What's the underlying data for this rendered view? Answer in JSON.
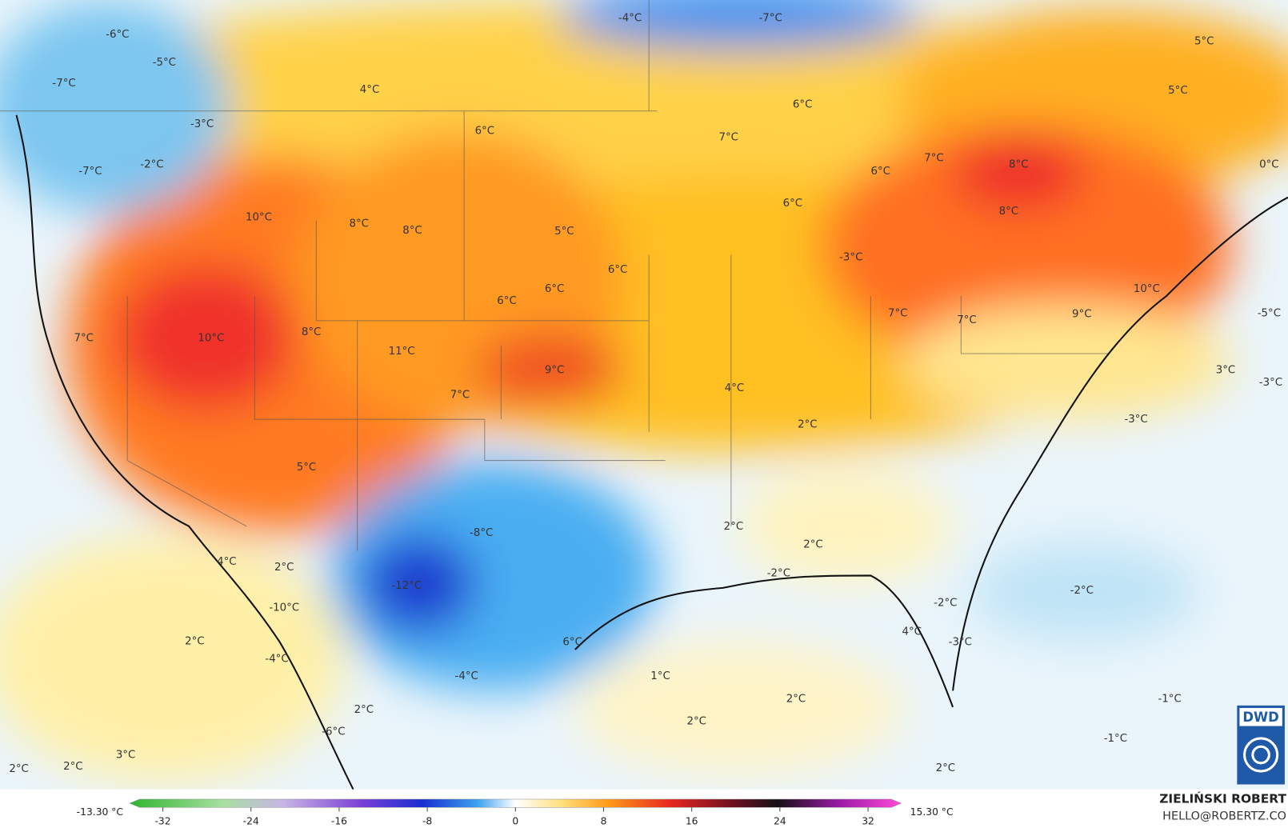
{
  "map": {
    "labels": [
      "-6°C",
      "-4°C",
      "-7°C",
      "5°C",
      "-5°C",
      "-7°C",
      "4°C",
      "5°C",
      "6°C",
      "-3°C",
      "6°C",
      "7°C",
      "7°C",
      "8°C",
      "-2°C",
      "-7°C",
      "0°C",
      "6°C",
      "6°C",
      "8°C",
      "10°C",
      "8°C",
      "8°C",
      "5°C",
      "-3°C",
      "6°C",
      "6°C",
      "10°C",
      "6°C",
      "7°C",
      "7°C",
      "9°C",
      "-5°C",
      "7°C",
      "10°C",
      "8°C",
      "11°C",
      "9°C",
      "3°C",
      "-3°C",
      "4°C",
      "7°C",
      "2°C",
      "-3°C",
      "5°C",
      "-8°C",
      "2°C",
      "2°C",
      "4°C",
      "2°C",
      "-2°C",
      "-12°C",
      "-2°C",
      "-10°C",
      "-2°C",
      "2°C",
      "6°C",
      "4°C",
      "-3°C",
      "-4°C",
      "1°C",
      "-4°C",
      "2°C",
      "-1°C",
      "2°C",
      "2°C",
      "-6°C",
      "3°C",
      "-1°C",
      "2°C",
      "2°C",
      "2°C"
    ],
    "logo": "DWD"
  },
  "colorbar": {
    "min_label": "-13.30 °C",
    "max_label": "15.30 °C",
    "range": [
      -35,
      35
    ],
    "ticks": [
      -32,
      -24,
      -16,
      -8,
      0,
      8,
      16,
      24,
      32
    ]
  },
  "credit": {
    "name": "ZIELIŃSKI ROBERT",
    "contact": "HELLO@ROBERTZ.CO"
  }
}
